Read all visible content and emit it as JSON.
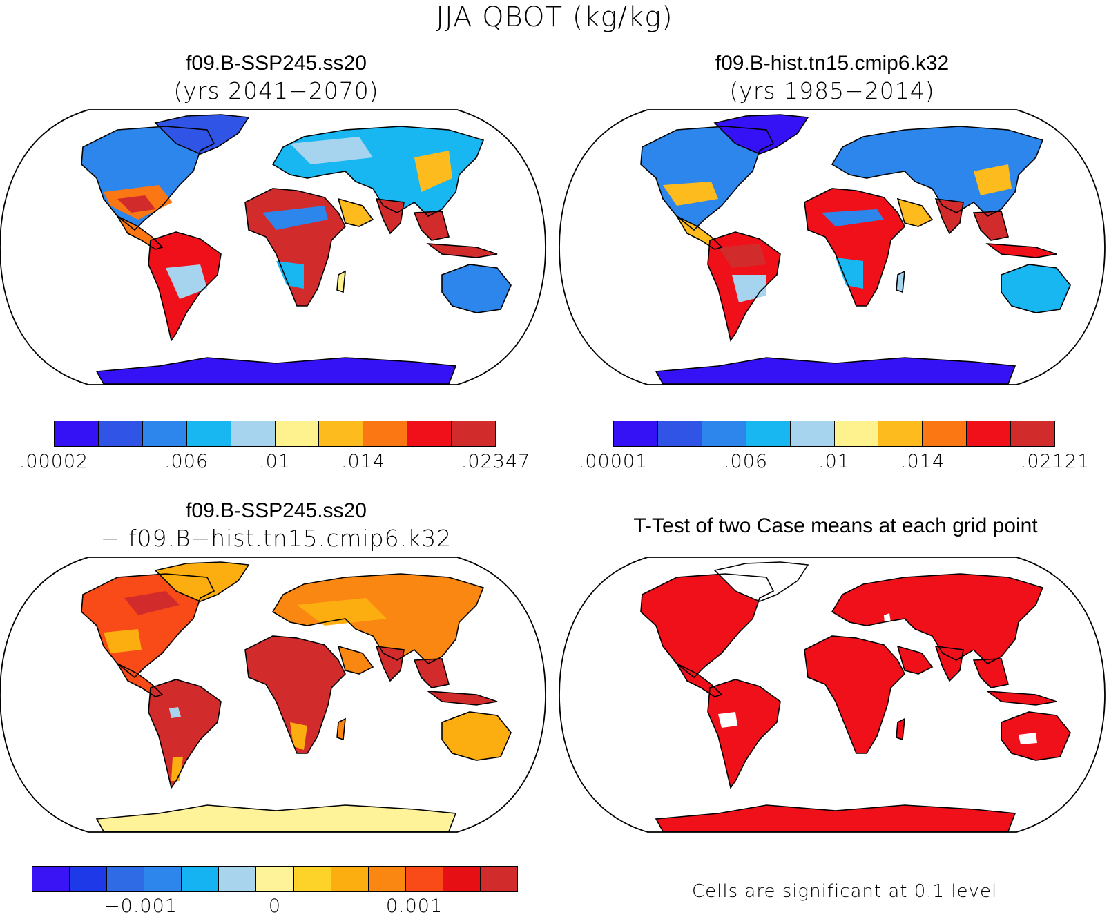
{
  "figure": {
    "title": "JJA QBOT (kg/kg)"
  },
  "panels": [
    {
      "title": "f09.B-SSP245.ss20",
      "subtitle": "(yrs 2041−2070)",
      "colorbar": {
        "colors": [
          "#3512f5",
          "#3054e6",
          "#2c86eb",
          "#18b7f2",
          "#a6d4ef",
          "#fef28f",
          "#fdbb1d",
          "#fb7713",
          "#f01019",
          "#d22b2c"
        ],
        "labels": [
          ".00002",
          ".006",
          ".01",
          ".014",
          ".02347"
        ]
      }
    },
    {
      "title": "f09.B-hist.tn15.cmip6.k32",
      "subtitle": "(yrs 1985−2014)",
      "colorbar": {
        "colors": [
          "#3512f5",
          "#3054e6",
          "#2c86eb",
          "#18b7f2",
          "#a6d4ef",
          "#fef28f",
          "#fdbb1d",
          "#fb7713",
          "#f01019",
          "#d22b2c"
        ],
        "labels": [
          ".00001",
          ".006",
          ".01",
          ".014",
          ".02121"
        ]
      }
    },
    {
      "title": "f09.B-SSP245.ss20",
      "subtitle": "− f09.B−hist.tn15.cmip6.k32",
      "colorbar": {
        "colors": [
          "#3a14f5",
          "#1e3ae8",
          "#2f6be5",
          "#2c86eb",
          "#16b3f2",
          "#a9d4ee",
          "#fff39a",
          "#fdd32a",
          "#fcae10",
          "#fb8713",
          "#f84b18",
          "#e60f14",
          "#d22b2c"
        ],
        "labels": [
          "−0.001",
          "0",
          "0.001"
        ]
      }
    },
    {
      "title": "T-Test of two Case means at each grid point",
      "note": "Cells are significant at 0.1 level"
    }
  ]
}
